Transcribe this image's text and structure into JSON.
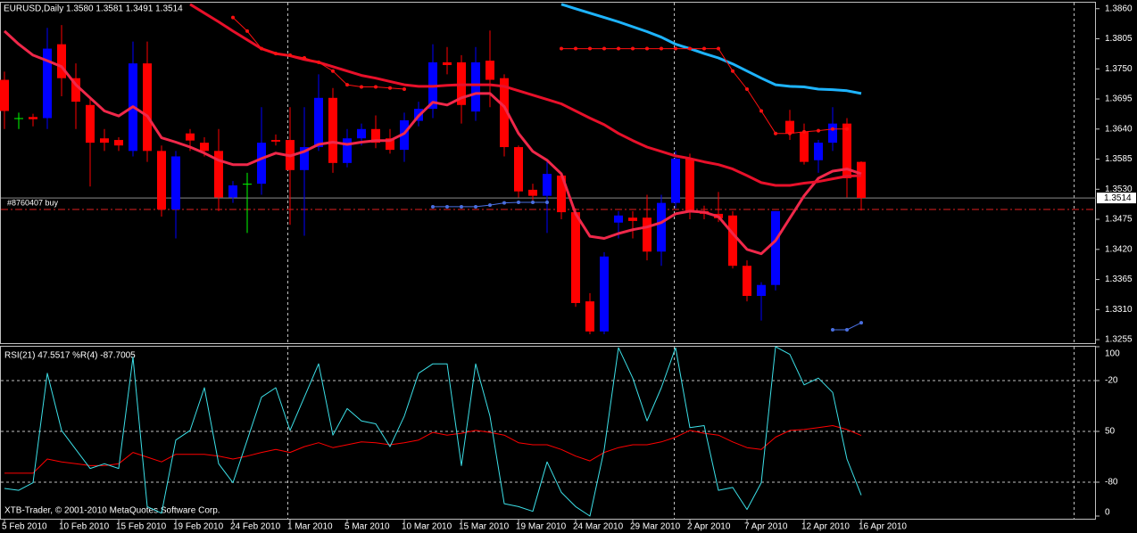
{
  "chart_data": [
    {
      "type": "candlestick",
      "title": "EURUSD,Daily  1.3580 1.3581 1.3491 1.3514",
      "categories": [
        "5 Feb 2010",
        null,
        null,
        null,
        "10 Feb 2010",
        null,
        null,
        null,
        "15 Feb 2010",
        null,
        null,
        null,
        "19 Feb 2010",
        null,
        null,
        null,
        "24 Feb 2010",
        null,
        null,
        null,
        "1 Mar 2010",
        null,
        null,
        null,
        "5 Mar 2010",
        null,
        null,
        null,
        "10 Mar 2010",
        null,
        null,
        null,
        "15 Mar 2010",
        null,
        null,
        null,
        "19 Mar 2010",
        null,
        null,
        null,
        "24 Mar 2010",
        null,
        null,
        null,
        "29 Mar 2010",
        null,
        null,
        null,
        "2 Apr 2010",
        null,
        null,
        null,
        "7 Apr 2010",
        null,
        null,
        null,
        "12 Apr 2010",
        null,
        null,
        null,
        "16 Apr 2010"
      ],
      "open": [
        1.373,
        1.366,
        1.3662,
        1.366,
        1.3795,
        1.3733,
        1.3684,
        1.3623,
        1.362,
        1.36,
        1.376,
        1.36,
        1.3493,
        1.3632,
        1.3615,
        1.36,
        1.3515,
        1.354,
        1.354,
        1.362,
        1.362,
        1.3565,
        1.3607,
        1.3697,
        1.3578,
        1.3623,
        1.364,
        1.3623,
        1.3602,
        1.3655,
        1.3677,
        1.3762,
        1.3762,
        1.3672,
        1.3765,
        1.3733,
        1.3607,
        1.3529,
        1.3518,
        1.3555,
        1.3488,
        1.3325,
        1.327,
        1.3469,
        1.3478,
        1.3478,
        1.3416,
        1.3505,
        1.3586,
        1.349,
        1.3485,
        1.3482,
        1.339,
        1.3335,
        1.3355,
        1.3655,
        1.3635,
        1.3583,
        1.3615,
        1.365,
        1.358
      ],
      "high": [
        1.3745,
        1.367,
        1.3668,
        1.3825,
        1.383,
        1.376,
        1.3695,
        1.364,
        1.3625,
        1.38,
        1.38,
        1.361,
        1.36,
        1.364,
        1.3625,
        1.364,
        1.3545,
        1.356,
        1.368,
        1.363,
        1.368,
        1.368,
        1.374,
        1.3715,
        1.364,
        1.365,
        1.3665,
        1.364,
        1.367,
        1.369,
        1.3795,
        1.379,
        1.3775,
        1.379,
        1.382,
        1.374,
        1.361,
        1.354,
        1.358,
        1.356,
        1.3495,
        1.334,
        1.3415,
        1.349,
        1.349,
        1.352,
        1.352,
        1.36,
        1.3595,
        1.35,
        1.3525,
        1.349,
        1.34,
        1.336,
        1.349,
        1.3675,
        1.365,
        1.362,
        1.368,
        1.366,
        1.3581
      ],
      "low": [
        1.364,
        1.364,
        1.3645,
        1.364,
        1.37,
        1.364,
        1.3535,
        1.36,
        1.36,
        1.359,
        1.358,
        1.348,
        1.344,
        1.36,
        1.359,
        1.349,
        1.3505,
        1.345,
        1.352,
        1.361,
        1.3465,
        1.3445,
        1.36,
        1.356,
        1.357,
        1.361,
        1.3605,
        1.3595,
        1.358,
        1.3645,
        1.366,
        1.374,
        1.365,
        1.3655,
        1.368,
        1.359,
        1.3515,
        1.351,
        1.345,
        1.3475,
        1.3315,
        1.3265,
        1.3265,
        1.344,
        1.344,
        1.34,
        1.339,
        1.3495,
        1.3475,
        1.3475,
        1.347,
        1.3385,
        1.3325,
        1.329,
        1.3345,
        1.362,
        1.3575,
        1.356,
        1.36,
        1.3515,
        1.3491
      ],
      "close": [
        1.3673,
        1.366,
        1.3658,
        1.3787,
        1.3733,
        1.369,
        1.3615,
        1.3615,
        1.361,
        1.376,
        1.36,
        1.3493,
        1.359,
        1.3619,
        1.36,
        1.3515,
        1.3537,
        1.354,
        1.3615,
        1.3617,
        1.3565,
        1.3607,
        1.3697,
        1.3578,
        1.3623,
        1.364,
        1.3615,
        1.3602,
        1.3656,
        1.3677,
        1.3762,
        1.3757,
        1.3684,
        1.3762,
        1.373,
        1.3607,
        1.3526,
        1.3518,
        1.3558,
        1.3488,
        1.3322,
        1.327,
        1.3407,
        1.3482,
        1.3472,
        1.3416,
        1.3505,
        1.3586,
        1.349,
        1.3485,
        1.3477,
        1.339,
        1.3335,
        1.3355,
        1.349,
        1.3632,
        1.358,
        1.3615,
        1.365,
        1.355,
        1.3514
      ],
      "colors": {
        "up": "#0000ff",
        "down": "#ff0000",
        "flat": "#00ff00"
      },
      "lines": [
        {
          "color": "#f0284a",
          "values": [
            1.3819,
            1.3795,
            1.3775,
            1.3765,
            1.3754,
            1.3721,
            1.3697,
            1.3673,
            1.3664,
            1.3681,
            1.3664,
            1.3624,
            1.3616,
            1.3607,
            1.3596,
            1.3583,
            1.3575,
            1.3575,
            1.3586,
            1.3596,
            1.3591,
            1.3599,
            1.3612,
            1.3616,
            1.3612,
            1.3616,
            1.3619,
            1.3619,
            1.3632,
            1.3664,
            1.3689,
            1.3684,
            1.3697,
            1.3705,
            1.3705,
            1.3681,
            1.3632,
            1.3599,
            1.3583,
            1.3558,
            1.3485,
            1.3444,
            1.344,
            1.3449,
            1.3456,
            1.3461,
            1.3469,
            1.3485,
            1.349,
            1.3488,
            1.348,
            1.3449,
            1.342,
            1.3412,
            1.3436,
            1.3477,
            1.3518,
            1.355,
            1.3563,
            1.3567,
            1.3558
          ]
        },
        {
          "color": "#e8102a",
          "values": [
            null,
            null,
            null,
            null,
            null,
            null,
            null,
            null,
            null,
            null,
            null,
            null,
            null,
            1.3868,
            1.3852,
            1.3836,
            1.3819,
            1.3803,
            1.3787,
            1.3778,
            1.3774,
            1.3767,
            1.3762,
            1.3754,
            1.3746,
            1.3738,
            1.3733,
            1.3727,
            1.3721,
            1.3718,
            1.3718,
            1.372,
            1.3721,
            1.3721,
            1.3721,
            1.3718,
            1.371,
            1.3702,
            1.3694,
            1.3686,
            1.3673,
            1.366,
            1.3648,
            1.3632,
            1.3619,
            1.3607,
            1.3599,
            1.3591,
            1.3586,
            1.358,
            1.3575,
            1.3567,
            1.3555,
            1.3542,
            1.3537,
            1.3537,
            1.3541,
            1.3544,
            1.3549,
            1.3554,
            1.3555
          ]
        },
        {
          "color": "#1eb4ff",
          "values": [
            null,
            null,
            null,
            null,
            null,
            null,
            null,
            null,
            null,
            null,
            null,
            null,
            null,
            null,
            null,
            null,
            null,
            null,
            null,
            null,
            null,
            null,
            null,
            null,
            null,
            null,
            null,
            null,
            null,
            null,
            null,
            null,
            null,
            null,
            null,
            null,
            null,
            null,
            null,
            1.3868,
            1.386,
            1.3852,
            1.3844,
            1.3836,
            1.3827,
            1.3818,
            1.3808,
            1.3795,
            1.3787,
            1.3778,
            1.377,
            1.3759,
            1.3746,
            1.3733,
            1.3721,
            1.3718,
            1.3717,
            1.3713,
            1.3712,
            1.371,
            1.3705
          ]
        }
      ],
      "dots": [
        {
          "color": "#ff1010",
          "values": [
            null,
            null,
            null,
            null,
            null,
            null,
            null,
            null,
            null,
            null,
            null,
            null,
            null,
            null,
            null,
            null,
            1.3844,
            1.3819,
            1.3787,
            1.3778,
            1.3775,
            1.377,
            1.3762,
            1.3746,
            1.3721,
            1.3717,
            1.3717,
            1.3715,
            1.3713,
            null,
            null,
            null,
            null,
            null,
            null,
            null,
            null,
            null,
            null,
            1.3787,
            1.3787,
            1.3787,
            1.3787,
            1.3787,
            1.3787,
            1.3787,
            1.3787,
            1.3787,
            1.3787,
            1.3787,
            1.3787,
            1.3746,
            1.3713,
            1.3673,
            1.3632,
            1.3632,
            1.3635,
            1.3637,
            1.364,
            1.364,
            null
          ]
        },
        {
          "color": "#4a6fe0",
          "values": [
            null,
            null,
            null,
            null,
            null,
            null,
            null,
            null,
            null,
            null,
            null,
            null,
            null,
            null,
            null,
            null,
            null,
            null,
            null,
            null,
            null,
            null,
            null,
            null,
            null,
            null,
            null,
            null,
            null,
            null,
            1.3498,
            1.3498,
            1.3498,
            1.3498,
            1.3501,
            1.3505,
            1.3506,
            1.3506,
            1.3506,
            null,
            null,
            null,
            null,
            null,
            null,
            null,
            null,
            null,
            null,
            null,
            null,
            null,
            null,
            null,
            null,
            null,
            null,
            null,
            1.3273,
            1.3273,
            1.3286
          ]
        }
      ],
      "bid": 1.3514,
      "order": {
        "label": "#8760407 buy",
        "value": 1.3493
      },
      "ylim": [
        1.3247,
        1.3871
      ],
      "yticks": [
        {
          "value": 1.386,
          "label": "1.3860"
        },
        1.3805,
        {
          "value": 1.375,
          "label": "1.3750"
        },
        1.3695,
        {
          "value": 1.364,
          "label": "1.3640"
        },
        1.3585,
        {
          "value": 1.353,
          "label": "1.3530"
        },
        1.3475,
        {
          "value": 1.342,
          "label": "1.3420"
        },
        1.3365,
        {
          "value": 1.331,
          "label": "1.3310"
        },
        1.3255
      ]
    },
    {
      "type": "line",
      "title": "RSI(21) 47.5517 %R(4) -87.7005",
      "annotation": "XTB-Trader, © 2001-2010 MetaQuotes Software Corp.",
      "series": [
        {
          "color": "#ff0000",
          "values": [
            25.3,
            25.3,
            25.3,
            33.7,
            32.0,
            30.9,
            29.8,
            29.8,
            30.9,
            37.6,
            34.8,
            32.0,
            36.5,
            36.5,
            36.5,
            35.4,
            33.7,
            35.4,
            37.6,
            39.3,
            37.6,
            41.0,
            43.3,
            40.4,
            42.1,
            43.8,
            43.3,
            42.1,
            43.3,
            44.9,
            49.4,
            47.8,
            48.9,
            50.6,
            49.4,
            47.8,
            43.3,
            42.1,
            42.1,
            39.3,
            35.4,
            32.6,
            37.6,
            40.4,
            42.1,
            42.1,
            43.8,
            46.6,
            50.6,
            48.9,
            47.8,
            43.8,
            40.4,
            39.3,
            46.6,
            50.6,
            51.1,
            52.2,
            53.4,
            51.1,
            47.6
          ]
        },
        {
          "color": "#3ce0e8",
          "axis": "y2",
          "values": [
            -83.7,
            -84.8,
            -80.3,
            -15.7,
            -49.4,
            -60.7,
            -71.9,
            -69.1,
            -71.9,
            -6.2,
            -94.4,
            -98.3,
            -55.1,
            -49.4,
            -24.2,
            -69.1,
            -80.3,
            -55.1,
            -29.8,
            -24.2,
            -49.4,
            -29.8,
            -10.1,
            -52.2,
            -36.5,
            -43.8,
            -45.5,
            -59.0,
            -41.0,
            -15.7,
            -10.1,
            -10.1,
            -70.2,
            -10.1,
            -41.0,
            -92.7,
            -94.4,
            -97.2,
            -68.0,
            -86.0,
            -94.4,
            -100,
            -60.7,
            -0.6,
            -18.5,
            -43.8,
            -24.2,
            -0.6,
            -47.8,
            -46.6,
            -84.8,
            -83.1,
            -96.1,
            -80.3,
            0,
            -4.5,
            -22.5,
            -18.5,
            -27.0,
            -66.3,
            -87.7
          ]
        }
      ],
      "ylim": [
        -2.1,
        100
      ],
      "yticks": [
        100,
        50,
        0
      ],
      "y2lim": [
        -102.1,
        0
      ],
      "y2ticks": [
        -20,
        -80
      ],
      "grid": true
    }
  ]
}
